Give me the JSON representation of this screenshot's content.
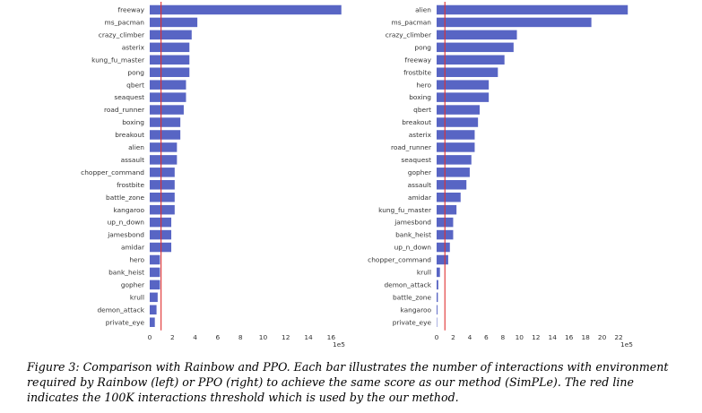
{
  "chart_data": [
    {
      "type": "bar",
      "orientation": "horizontal",
      "categories": [
        "freeway",
        "ms_pacman",
        "crazy_climber",
        "asterix",
        "kung_fu_master",
        "pong",
        "qbert",
        "seaquest",
        "road_runner",
        "boxing",
        "breakout",
        "alien",
        "assault",
        "chopper_command",
        "frostbite",
        "battle_zone",
        "kangaroo",
        "up_n_down",
        "jamesbond",
        "amidar",
        "hero",
        "bank_heist",
        "gopher",
        "krull",
        "demon_attack",
        "private_eye"
      ],
      "values": [
        16.9,
        4.2,
        3.7,
        3.5,
        3.5,
        3.5,
        3.2,
        3.2,
        3.0,
        2.7,
        2.7,
        2.4,
        2.4,
        2.2,
        2.2,
        2.2,
        2.2,
        1.9,
        1.9,
        1.9,
        0.9,
        0.9,
        0.9,
        0.7,
        0.6,
        0.45
      ],
      "x_ticks": [
        "0",
        "2",
        "4",
        "6",
        "8",
        "10",
        "12",
        "14",
        "16"
      ],
      "xlim": [
        0,
        17
      ],
      "x_multiplier": "1e5",
      "threshold": 1,
      "bar_color": "#5865c4",
      "threshold_color": "#e03030",
      "grid": false
    },
    {
      "type": "bar",
      "orientation": "horizontal",
      "categories": [
        "alien",
        "ms_pacman",
        "crazy_climber",
        "pong",
        "freeway",
        "frostbite",
        "hero",
        "boxing",
        "qbert",
        "breakout",
        "asterix",
        "road_runner",
        "seaquest",
        "gopher",
        "assault",
        "amidar",
        "kung_fu_master",
        "jamesbond",
        "bank_heist",
        "up_n_down",
        "chopper_command",
        "krull",
        "demon_attack",
        "battle_zone",
        "kangaroo",
        "private_eye"
      ],
      "values": [
        23.1,
        18.7,
        9.7,
        9.3,
        8.2,
        7.4,
        6.3,
        6.3,
        5.2,
        5.0,
        4.6,
        4.6,
        4.2,
        4.0,
        3.6,
        2.9,
        2.4,
        2.0,
        2.0,
        1.6,
        1.4,
        0.4,
        0.2,
        0.15,
        0.1,
        0.05
      ],
      "x_ticks": [
        "0",
        "2",
        "4",
        "6",
        "8",
        "10",
        "12",
        "14",
        "16",
        "18",
        "20",
        "22"
      ],
      "xlim": [
        0,
        23.4
      ],
      "x_multiplier": "1e5",
      "threshold": 1,
      "bar_color": "#5865c4",
      "threshold_color": "#e03030",
      "grid": false
    }
  ],
  "caption": {
    "label": "Figure 3:",
    "text": " Comparison with Rainbow and PPO. Each bar illustrates the number of interactions with environment required by Rainbow (left) or PPO (right) to achieve the same score as our method (SimPLe). The red line indicates the 100K interactions threshold which is used by the our method."
  }
}
